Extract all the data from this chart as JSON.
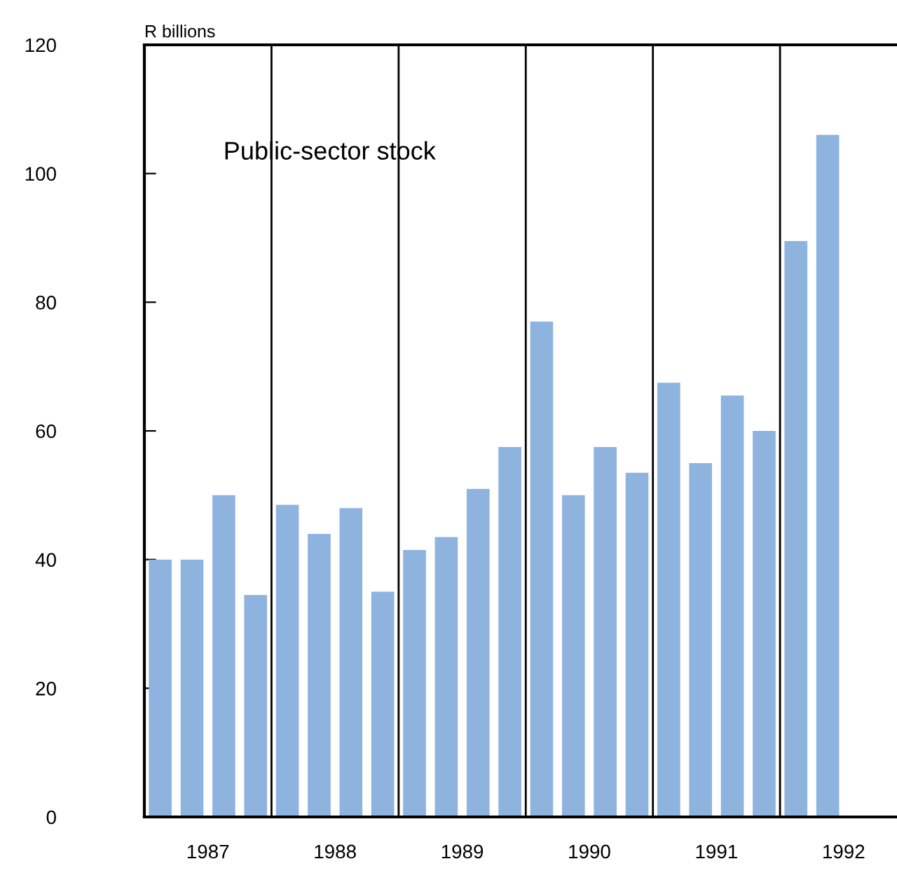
{
  "chart_data": {
    "type": "bar",
    "ylabel": "R billions",
    "annotations": [
      "Public-sector stock"
    ],
    "x": [
      1987.125,
      1987.375,
      1987.625,
      1987.875,
      1988.125,
      1988.375,
      1988.625,
      1988.875,
      1989.125,
      1989.375,
      1989.625,
      1989.875,
      1990.125,
      1990.375,
      1990.625,
      1990.875,
      1991.125,
      1991.375,
      1991.625,
      1991.875,
      1992.125,
      1992.375
    ],
    "series": [
      {
        "color": "#8fb3df",
        "values": [
          40,
          40,
          50,
          34.5,
          48.5,
          44,
          48,
          35,
          41.5,
          43.5,
          51,
          57.5,
          77,
          50,
          57.5,
          53.5,
          67.5,
          55,
          65.5,
          60,
          89.5,
          106
        ]
      }
    ],
    "xlim": [
      1987,
      1992.92
    ],
    "xticks": [
      {
        "value": 1987.5,
        "label": "1987"
      },
      {
        "value": 1988.5,
        "label": "1988"
      },
      {
        "value": 1989.5,
        "label": "1989"
      },
      {
        "value": 1990.5,
        "label": "1990"
      },
      {
        "value": 1991.5,
        "label": "1991"
      },
      {
        "value": 1992.5,
        "label": "1992"
      }
    ],
    "ylim": [
      0,
      120
    ],
    "yticks": [
      0,
      20,
      40,
      60,
      80,
      100,
      120
    ],
    "ref_lines": [
      {
        "axis": "x",
        "value": 1988,
        "color": "#000000"
      },
      {
        "axis": "x",
        "value": 1989,
        "color": "#000000"
      },
      {
        "axis": "x",
        "value": 1990,
        "color": "#000000"
      },
      {
        "axis": "x",
        "value": 1991,
        "color": "#000000"
      },
      {
        "axis": "x",
        "value": 1992,
        "color": "#000000"
      }
    ],
    "grid": false,
    "legend": false
  }
}
